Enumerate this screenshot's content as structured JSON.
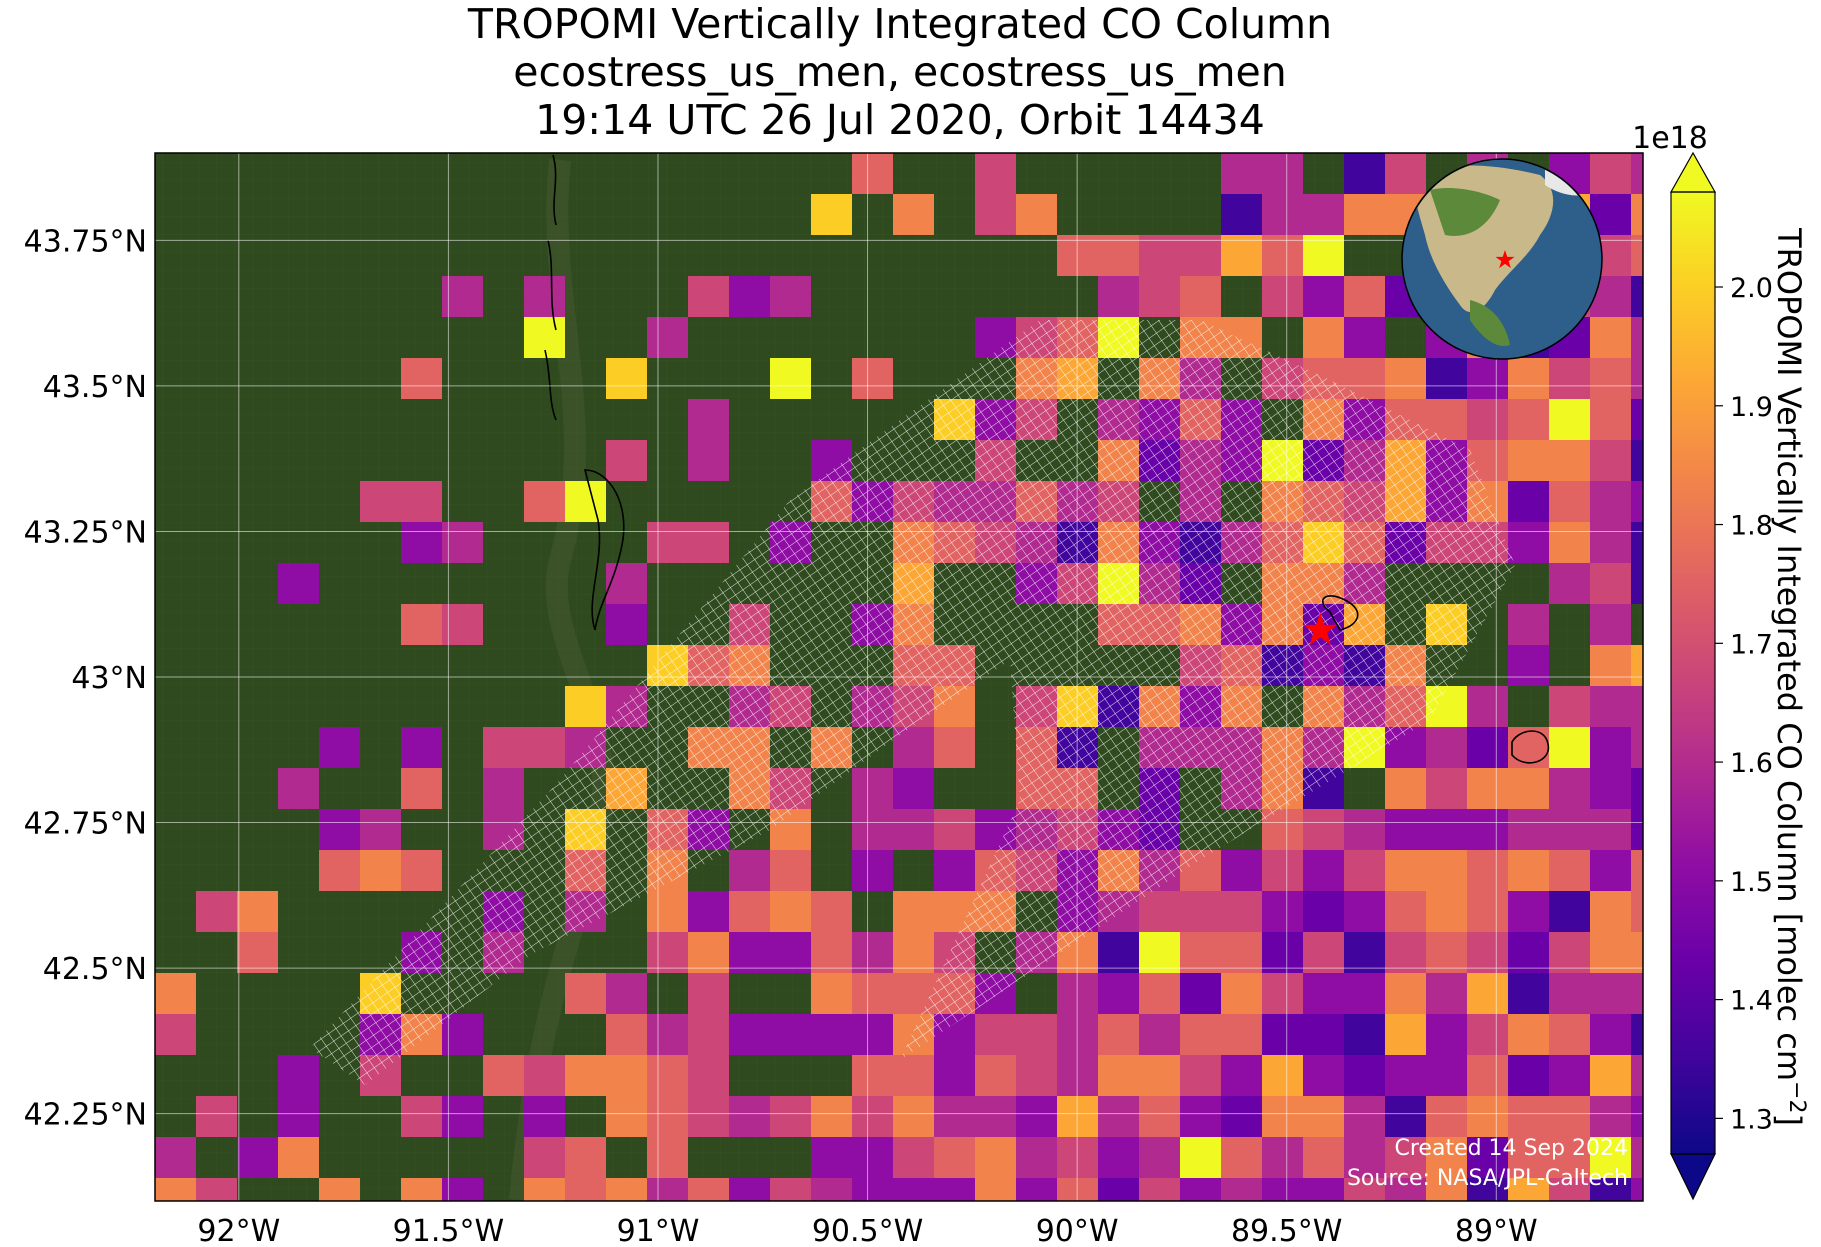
{
  "title": {
    "line1": "TROPOMI Vertically Integrated CO Column",
    "line2": "ecostress_us_men, ecostress_us_men",
    "line3": "19:14 UTC 26 Jul 2020, Orbit 14434"
  },
  "map": {
    "lon_range": [
      -92.2,
      -88.65
    ],
    "lat_range": [
      42.1,
      43.9
    ],
    "lon_ticks": [
      -92.0,
      -91.5,
      -91.0,
      -90.5,
      -90.0,
      -89.5,
      -89.0
    ],
    "lon_tick_labels": [
      "92°W",
      "91.5°W",
      "91°W",
      "90.5°W",
      "90°W",
      "89.5°W",
      "89°W"
    ],
    "lat_ticks": [
      43.75,
      43.5,
      43.25,
      43.0,
      42.75,
      42.5,
      42.25
    ],
    "lat_tick_labels": [
      "43.75°N",
      "43.5°N",
      "43.25°N",
      "43°N",
      "42.75°N",
      "42.5°N",
      "42.25°N"
    ],
    "gridlines": true,
    "background": "satellite imagery (forest / cropland)",
    "target_marker": {
      "lon": -89.42,
      "lat": 43.08,
      "symbol": "red star",
      "color": "#ff0000"
    },
    "inset_globe": {
      "position": "top-right",
      "center_marker": "red star"
    },
    "overlay": "white outlined target-mode footprints (ECOSTRESS scene)"
  },
  "colorbar": {
    "label": "TROPOMI Vertically Integrated CO Column [molec cm",
    "label_superscript": "−2",
    "label_suffix": "]",
    "scale_label": "1e18",
    "min": 1.27,
    "max": 2.08,
    "ticks": [
      1.3,
      1.4,
      1.5,
      1.6,
      1.7,
      1.8,
      1.9,
      2.0
    ],
    "tick_labels": [
      "1.3",
      "1.4",
      "1.5",
      "1.6",
      "1.7",
      "1.8",
      "1.9",
      "2.0"
    ],
    "colormap": "plasma",
    "extend": "both"
  },
  "credits": {
    "created": "Created 14 Sep 2024",
    "source": "Source: NASA/JPL-Caltech"
  }
}
